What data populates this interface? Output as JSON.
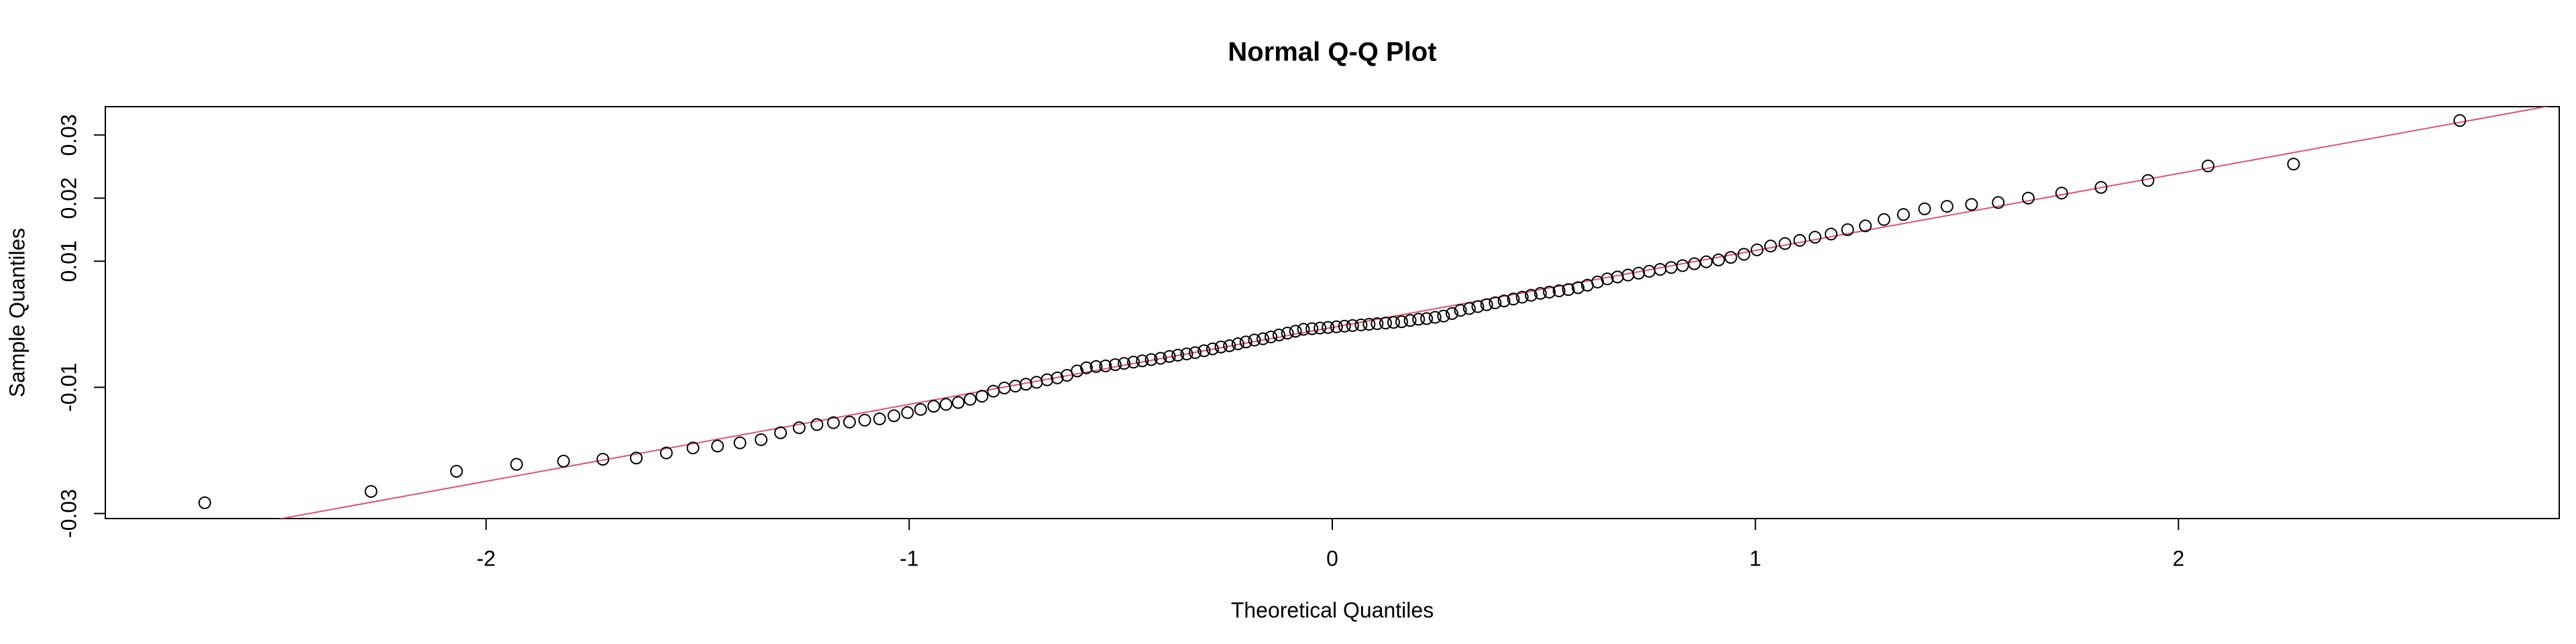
{
  "chart_data": {
    "type": "scatter",
    "title": "Normal Q-Q Plot",
    "x_label": "Theoretical Quantiles",
    "y_label": "Sample Quantiles",
    "xlim": [
      -2.9,
      2.9
    ],
    "ylim": [
      -0.0308,
      0.0345
    ],
    "xticks": [
      -2,
      -1,
      0,
      1,
      2
    ],
    "yticks": [
      -0.03,
      -0.01,
      0.01,
      0.02,
      0.03
    ],
    "point_color": "#000000",
    "qqline": {
      "intercept": -0.0005,
      "slope": 0.0122,
      "color": "#df536b"
    },
    "x": [
      -2.665,
      -2.272,
      -2.07,
      -1.928,
      -1.817,
      -1.724,
      -1.645,
      -1.574,
      -1.511,
      -1.453,
      -1.4,
      -1.35,
      -1.304,
      -1.26,
      -1.218,
      -1.179,
      -1.141,
      -1.105,
      -1.07,
      -1.036,
      -1.004,
      -0.973,
      -0.942,
      -0.913,
      -0.884,
      -0.856,
      -0.828,
      -0.801,
      -0.775,
      -0.749,
      -0.724,
      -0.699,
      -0.674,
      -0.65,
      -0.627,
      -0.603,
      -0.581,
      -0.558,
      -0.536,
      -0.513,
      -0.492,
      -0.47,
      -0.449,
      -0.428,
      -0.406,
      -0.385,
      -0.365,
      -0.344,
      -0.324,
      -0.303,
      -0.283,
      -0.263,
      -0.243,
      -0.223,
      -0.204,
      -0.184,
      -0.164,
      -0.145,
      -0.126,
      -0.106,
      -0.087,
      -0.068,
      -0.048,
      -0.029,
      -0.01,
      0.01,
      0.029,
      0.048,
      0.068,
      0.087,
      0.106,
      0.126,
      0.145,
      0.164,
      0.184,
      0.204,
      0.223,
      0.243,
      0.263,
      0.283,
      0.303,
      0.324,
      0.344,
      0.365,
      0.385,
      0.406,
      0.428,
      0.449,
      0.47,
      0.492,
      0.513,
      0.536,
      0.558,
      0.581,
      0.603,
      0.627,
      0.65,
      0.674,
      0.699,
      0.724,
      0.749,
      0.775,
      0.801,
      0.828,
      0.856,
      0.884,
      0.913,
      0.942,
      0.973,
      1.004,
      1.036,
      1.07,
      1.105,
      1.141,
      1.179,
      1.218,
      1.26,
      1.304,
      1.35,
      1.4,
      1.453,
      1.511,
      1.574,
      1.645,
      1.724,
      1.817,
      1.928,
      2.07,
      2.272,
      2.665
    ],
    "values": [
      -0.0283,
      -0.0265,
      -0.0233,
      -0.0222,
      -0.0217,
      -0.0214,
      -0.0212,
      -0.0204,
      -0.0196,
      -0.0193,
      -0.0188,
      -0.0183,
      -0.0172,
      -0.0164,
      -0.0159,
      -0.0156,
      -0.0155,
      -0.0152,
      -0.015,
      -0.0145,
      -0.014,
      -0.0135,
      -0.013,
      -0.0127,
      -0.0124,
      -0.0119,
      -0.0114,
      -0.0106,
      -0.0101,
      -0.0098,
      -0.0095,
      -0.0092,
      -0.0088,
      -0.0085,
      -0.0081,
      -0.0074,
      -0.0069,
      -0.0067,
      -0.0066,
      -0.0064,
      -0.0062,
      -0.006,
      -0.0058,
      -0.0056,
      -0.0054,
      -0.0051,
      -0.0049,
      -0.0047,
      -0.0045,
      -0.0042,
      -0.0039,
      -0.0036,
      -0.0034,
      -0.0031,
      -0.0028,
      -0.0025,
      -0.0023,
      -0.002,
      -0.0017,
      -0.0014,
      -0.0011,
      -0.0008,
      -0.0007,
      -0.0006,
      -0.0005,
      -0.0004,
      -0.0003,
      -0.0002,
      -0.0001,
      0.0,
      0.0001,
      0.0002,
      0.0003,
      0.0004,
      0.0006,
      0.0008,
      0.0009,
      0.0011,
      0.0013,
      0.0017,
      0.0022,
      0.0025,
      0.0028,
      0.0031,
      0.0034,
      0.0037,
      0.004,
      0.0043,
      0.0046,
      0.0049,
      0.0051,
      0.0053,
      0.0055,
      0.0058,
      0.0062,
      0.0067,
      0.0072,
      0.0075,
      0.0078,
      0.0081,
      0.0084,
      0.0087,
      0.009,
      0.0093,
      0.0096,
      0.0099,
      0.0102,
      0.0106,
      0.0111,
      0.0118,
      0.0124,
      0.0128,
      0.0133,
      0.0138,
      0.0143,
      0.015,
      0.0156,
      0.0166,
      0.0174,
      0.0183,
      0.0187,
      0.019,
      0.0193,
      0.02,
      0.0208,
      0.0217,
      0.0228,
      0.0251,
      0.0254,
      0.0323
    ]
  }
}
